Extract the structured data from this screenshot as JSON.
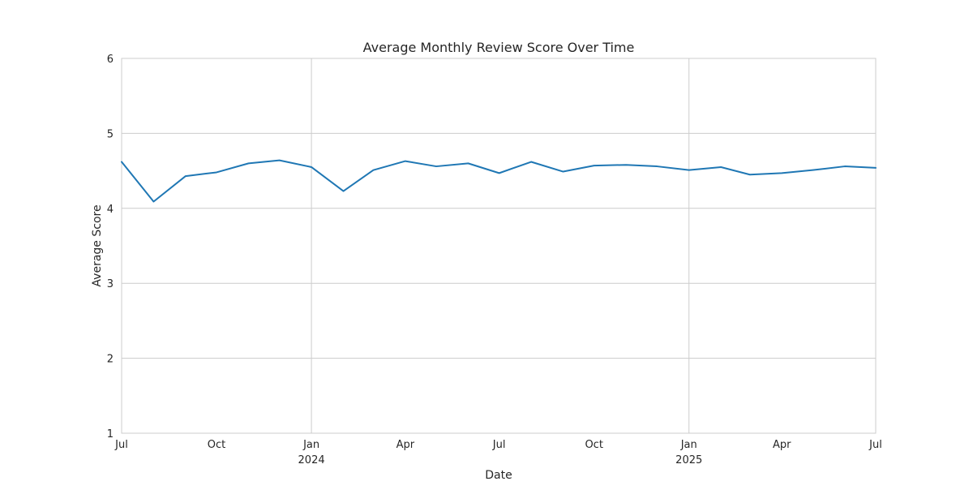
{
  "chart_data": {
    "type": "line",
    "title": "Average Monthly Review Score Over Time",
    "xlabel": "Date",
    "ylabel": "Average Score",
    "ylim": [
      1,
      6
    ],
    "xlim": [
      "2023-07-01",
      "2025-07-01"
    ],
    "yticks": [
      1,
      2,
      3,
      4,
      5,
      6
    ],
    "xticks": [
      {
        "date": "2023-07-01",
        "label": "Jul",
        "sublabel": ""
      },
      {
        "date": "2023-10-01",
        "label": "Oct",
        "sublabel": ""
      },
      {
        "date": "2024-01-01",
        "label": "Jan",
        "sublabel": "2024"
      },
      {
        "date": "2024-04-01",
        "label": "Apr",
        "sublabel": ""
      },
      {
        "date": "2024-07-01",
        "label": "Jul",
        "sublabel": ""
      },
      {
        "date": "2024-10-01",
        "label": "Oct",
        "sublabel": ""
      },
      {
        "date": "2025-01-01",
        "label": "Jan",
        "sublabel": "2025"
      },
      {
        "date": "2025-04-01",
        "label": "Apr",
        "sublabel": ""
      },
      {
        "date": "2025-07-01",
        "label": "Jul",
        "sublabel": ""
      }
    ],
    "grid": true,
    "colors": {
      "line": "#1f77b4",
      "grid": "#cccccc",
      "axis": "#cccccc"
    },
    "series": [
      {
        "name": "",
        "x": [
          "2023-07-01",
          "2023-08-01",
          "2023-09-01",
          "2023-10-01",
          "2023-11-01",
          "2023-12-01",
          "2024-01-01",
          "2024-02-01",
          "2024-03-01",
          "2024-04-01",
          "2024-05-01",
          "2024-06-01",
          "2024-07-01",
          "2024-08-01",
          "2024-09-01",
          "2024-10-01",
          "2024-11-01",
          "2024-12-01",
          "2025-01-01",
          "2025-02-01",
          "2025-03-01",
          "2025-04-01",
          "2025-05-01",
          "2025-06-01",
          "2025-07-01"
        ],
        "y": [
          4.62,
          4.09,
          4.43,
          4.48,
          4.6,
          4.64,
          4.55,
          4.23,
          4.51,
          4.63,
          4.56,
          4.6,
          4.47,
          4.62,
          4.49,
          4.57,
          4.58,
          4.56,
          4.51,
          4.55,
          4.45,
          4.47,
          4.51,
          4.56,
          4.54
        ]
      }
    ]
  }
}
